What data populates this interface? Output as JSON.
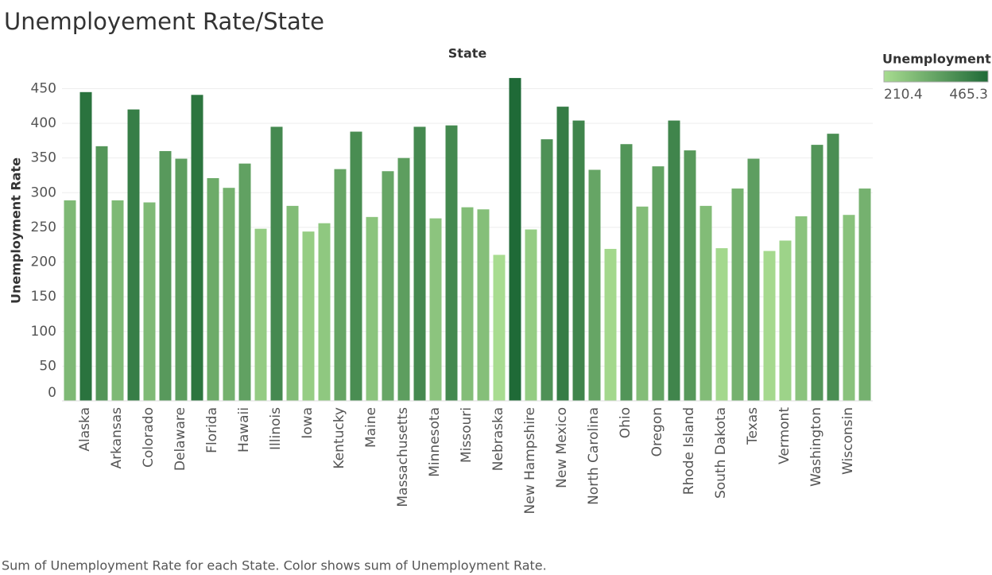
{
  "chart_data": {
    "type": "bar",
    "title": "Unemployement Rate/State",
    "column_header": "State",
    "y_label": "Unemployment Rate",
    "legend_title": "Unemployment..",
    "footnote": "Sum of Unemployment Rate for each State.  Color shows sum of Unemployment Rate.",
    "categories": [
      null,
      "Alaska",
      null,
      "Arkansas",
      null,
      "Colorado",
      null,
      "Delaware",
      null,
      "Florida",
      null,
      "Hawaii",
      null,
      "Illinois",
      null,
      "Iowa",
      null,
      "Kentucky",
      null,
      "Maine",
      null,
      "Massachusetts",
      null,
      "Minnesota",
      null,
      "Missouri",
      null,
      "Nebraska",
      null,
      "New Hampshire",
      null,
      "New Mexico",
      null,
      "North Carolina",
      null,
      "Ohio",
      null,
      "Oregon",
      null,
      "Rhode Island",
      null,
      "South Dakota",
      null,
      "Texas",
      null,
      "Vermont",
      null,
      "Washington",
      null,
      "Wisconsin",
      null
    ],
    "values": [
      289,
      445,
      367,
      289,
      420,
      286,
      360,
      349,
      441,
      321,
      307,
      342,
      248,
      395,
      281,
      244,
      256,
      334,
      388,
      265,
      331,
      350,
      395,
      263,
      397,
      279,
      276,
      210.4,
      465.3,
      247,
      377,
      424,
      404,
      333,
      219,
      370,
      280,
      338,
      404,
      361,
      281,
      220,
      306,
      349,
      216,
      231,
      266,
      369,
      385,
      268,
      306
    ],
    "color_range": [
      210.4,
      465.3
    ],
    "color_range_labels": [
      "210.4",
      "465.3"
    ],
    "colors": [
      "#a8dc90",
      "#1f6a37"
    ],
    "ylim": [
      0,
      470
    ],
    "yticks": [
      0,
      50,
      100,
      150,
      200,
      250,
      300,
      350,
      400,
      450
    ],
    "grid": true
  }
}
